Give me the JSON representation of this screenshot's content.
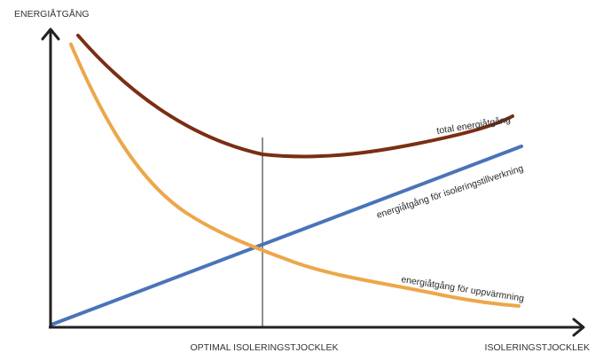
{
  "diagram": {
    "y_axis_label": "ENERGIÅTGÅNG",
    "x_axis_label": "ISOLERINGSTJOCKLEK",
    "optimum_label": "OPTIMAL ISOLERINGSTJOCKLEK",
    "curves": {
      "total": {
        "label": "total energiåtgång",
        "color": "#7a2e14"
      },
      "production": {
        "label": "energiåtgång för isoleringstillverkning",
        "color": "#4a74b8"
      },
      "heating": {
        "label": "energiåtgång för uppvärmning",
        "color": "#eca74a"
      }
    },
    "axis_color": "#222222",
    "optimum_line_color": "#8f8f8f"
  }
}
